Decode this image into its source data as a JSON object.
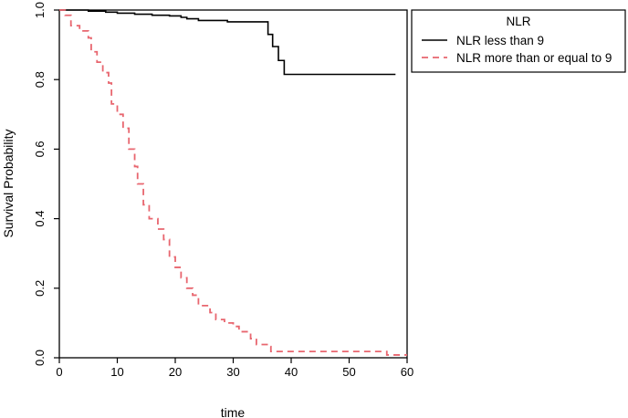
{
  "chart_data": {
    "type": "line",
    "subtype": "kaplan-meier step",
    "title": "",
    "xlabel": "time",
    "ylabel": "Survival Probability",
    "xlim": [
      0,
      60
    ],
    "ylim": [
      0,
      1
    ],
    "x_ticks": [
      0,
      10,
      20,
      30,
      40,
      50,
      60
    ],
    "y_ticks": [
      "0.0",
      "0.2",
      "0.4",
      "0.6",
      "0.8",
      "1.0"
    ],
    "grid": false,
    "legend": {
      "title": "NLR",
      "placement": "outside-right-top",
      "entries": [
        "NLR less than 9",
        "NLR more than or equal to 9"
      ]
    },
    "series": [
      {
        "name": "NLR less than 9",
        "color": "#000000",
        "line_style": "solid",
        "points": [
          [
            0,
            1.0
          ],
          [
            5,
            0.997
          ],
          [
            8,
            0.994
          ],
          [
            10,
            0.991
          ],
          [
            13,
            0.988
          ],
          [
            16,
            0.985
          ],
          [
            19,
            0.983
          ],
          [
            21,
            0.979
          ],
          [
            22,
            0.975
          ],
          [
            24,
            0.97
          ],
          [
            29,
            0.966
          ],
          [
            36,
            0.93
          ],
          [
            36.8,
            0.895
          ],
          [
            37.8,
            0.855
          ],
          [
            38.8,
            0.815
          ],
          [
            58,
            0.815
          ]
        ]
      },
      {
        "name": "NLR more than or equal to 9",
        "color": "#e8666f",
        "line_style": "dashed",
        "points": [
          [
            0,
            1.0
          ],
          [
            1,
            0.985
          ],
          [
            2,
            0.955
          ],
          [
            3.5,
            0.94
          ],
          [
            5,
            0.92
          ],
          [
            5.5,
            0.88
          ],
          [
            6.5,
            0.85
          ],
          [
            7.5,
            0.82
          ],
          [
            8.5,
            0.79
          ],
          [
            9,
            0.73
          ],
          [
            10,
            0.7
          ],
          [
            11,
            0.66
          ],
          [
            12,
            0.6
          ],
          [
            13,
            0.55
          ],
          [
            13.5,
            0.5
          ],
          [
            14.5,
            0.44
          ],
          [
            15.5,
            0.4
          ],
          [
            17,
            0.37
          ],
          [
            18,
            0.34
          ],
          [
            19,
            0.29
          ],
          [
            20,
            0.26
          ],
          [
            21,
            0.23
          ],
          [
            22,
            0.2
          ],
          [
            23,
            0.18
          ],
          [
            24,
            0.15
          ],
          [
            26,
            0.13
          ],
          [
            27,
            0.11
          ],
          [
            28.5,
            0.1
          ],
          [
            30,
            0.09
          ],
          [
            31,
            0.075
          ],
          [
            33,
            0.055
          ],
          [
            34,
            0.038
          ],
          [
            36,
            0.032
          ],
          [
            36.5,
            0.018
          ],
          [
            56,
            0.018
          ],
          [
            56.5,
            0.008
          ],
          [
            60,
            0.008
          ]
        ]
      }
    ]
  }
}
